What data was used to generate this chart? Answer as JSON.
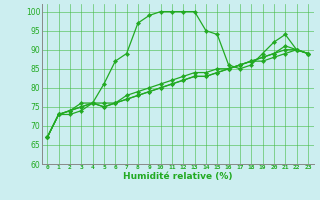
{
  "xlabel": "Humidité relative (%)",
  "bg_color": "#cceef0",
  "grid_color": "#44bb44",
  "line_color": "#22aa22",
  "xlim": [
    -0.5,
    23.5
  ],
  "ylim": [
    60,
    102
  ],
  "yticks": [
    60,
    65,
    70,
    75,
    80,
    85,
    90,
    95,
    100
  ],
  "xticks": [
    0,
    1,
    2,
    3,
    4,
    5,
    6,
    7,
    8,
    9,
    10,
    11,
    12,
    13,
    14,
    15,
    16,
    17,
    18,
    19,
    20,
    21,
    22,
    23
  ],
  "series": [
    [
      67,
      73,
      73,
      74,
      76,
      81,
      87,
      89,
      97,
      99,
      100,
      100,
      100,
      100,
      95,
      94,
      86,
      85,
      86,
      89,
      92,
      94,
      90,
      89
    ],
    [
      67,
      73,
      74,
      76,
      76,
      76,
      76,
      78,
      79,
      80,
      81,
      82,
      83,
      84,
      84,
      85,
      85,
      86,
      87,
      87,
      88,
      89,
      90,
      89
    ],
    [
      67,
      73,
      74,
      75,
      76,
      75,
      76,
      77,
      78,
      79,
      80,
      81,
      82,
      83,
      83,
      84,
      85,
      86,
      87,
      88,
      89,
      90,
      90,
      89
    ],
    [
      67,
      73,
      74,
      75,
      76,
      75,
      76,
      77,
      78,
      79,
      80,
      81,
      82,
      83,
      83,
      84,
      85,
      86,
      87,
      88,
      89,
      91,
      90,
      89
    ]
  ],
  "markersize": 2.2,
  "linewidth": 0.9
}
